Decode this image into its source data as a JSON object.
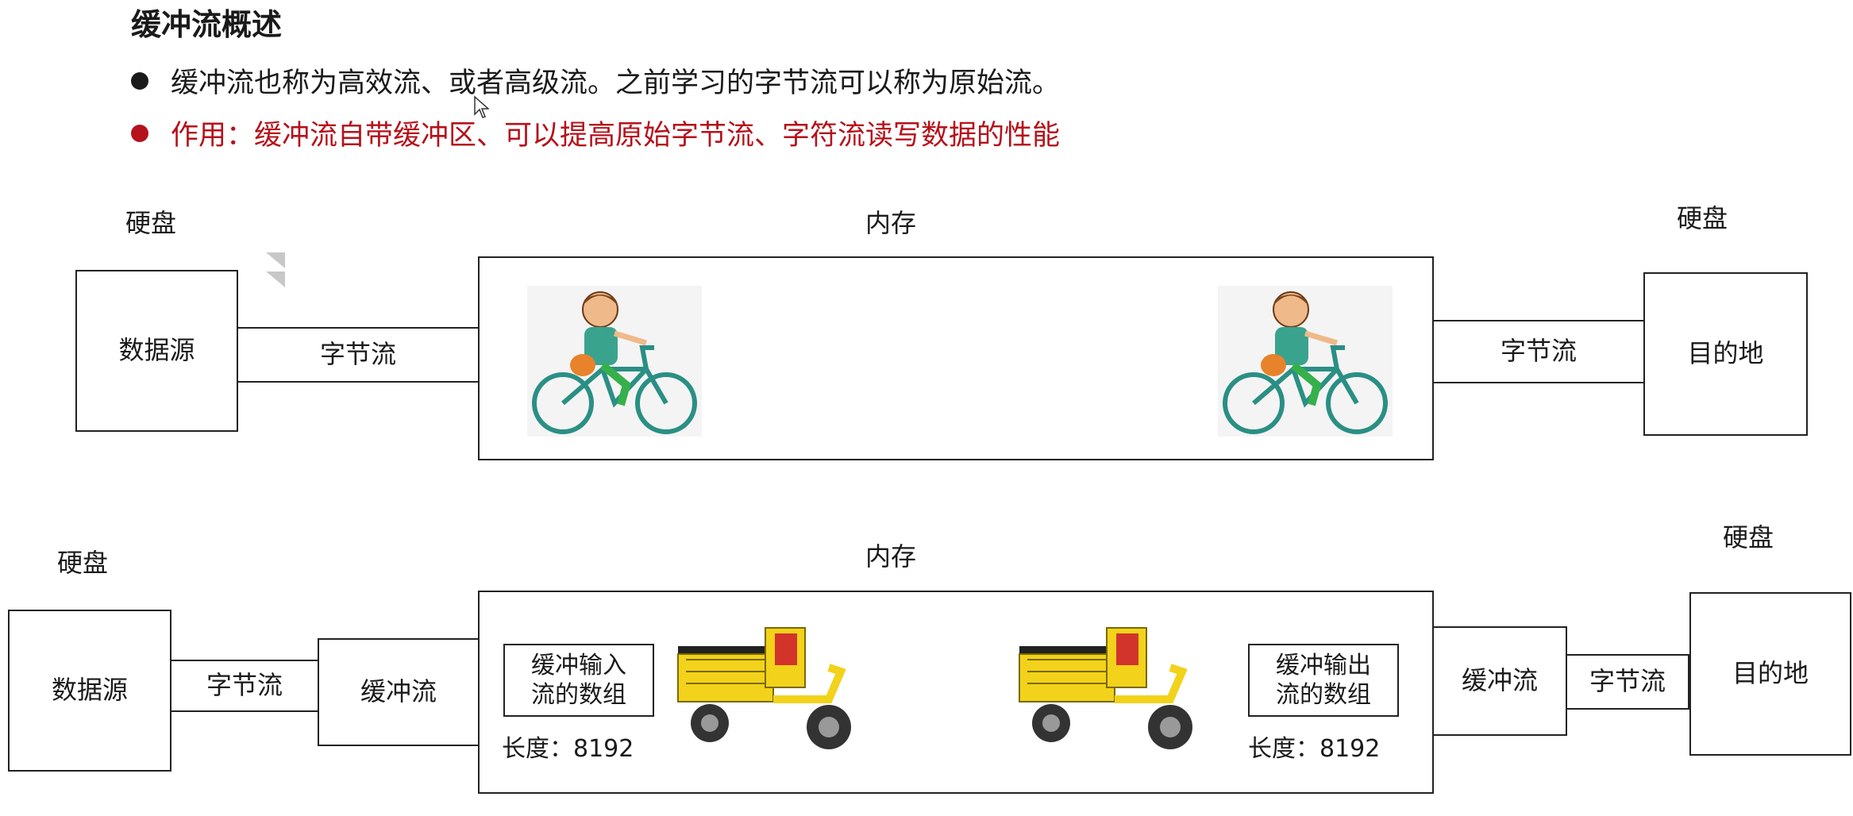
{
  "title": "缓冲流概述",
  "bullets": [
    "缓冲流也称为高效流、或者高级流。之前学习的字节流可以称为原始流。",
    "作用：缓冲流自带缓冲区、可以提高原始字节流、字符流读写数据的性能"
  ],
  "colors": {
    "accent": "#b5121b",
    "text": "#1a1a1a",
    "border": "#222222"
  },
  "diagram1": {
    "label_disk_left": "硬盘",
    "label_memory": "内存",
    "label_disk_right": "硬盘",
    "source": "数据源",
    "stream_left": "字节流",
    "stream_right": "字节流",
    "dest": "目的地",
    "icons": [
      "bicycle-rider-icon",
      "bicycle-rider-icon"
    ]
  },
  "diagram2": {
    "label_disk_left": "硬盘",
    "label_memory": "内存",
    "label_disk_right": "硬盘",
    "source": "数据源",
    "stream_byte_left": "字节流",
    "stream_buffer_left": "缓冲流",
    "input_array": "缓冲输入\n流的数组",
    "input_length": "长度：8192",
    "output_array": "缓冲输出\n流的数组",
    "output_length": "长度：8192",
    "stream_buffer_right": "缓冲流",
    "stream_byte_right": "字节流",
    "dest": "目的地",
    "icons": [
      "cargo-tricycle-icon",
      "cargo-tricycle-icon"
    ]
  }
}
